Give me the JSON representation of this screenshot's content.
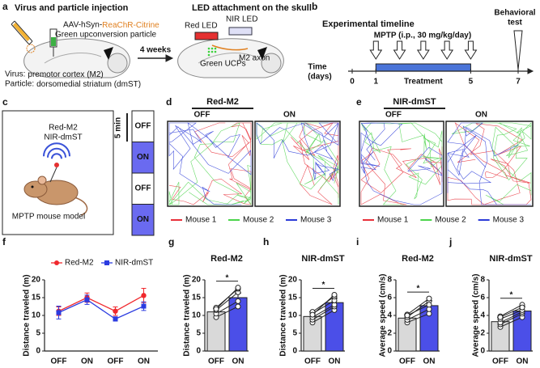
{
  "panel_a": {
    "letter": "a",
    "title": "Virus and particle injection",
    "construct_prefix": "AAV-hSyn-",
    "construct_gene": "ReaChR-Citrine",
    "particle": "Green upconversion particle",
    "interval": "4 weeks",
    "title_right": "LED attachment on the skull",
    "red_led": "Red LED",
    "nir_led": "NIR LED",
    "axon": "M2 axon",
    "ucps": "Green UCPs",
    "virus_key": "Virus:",
    "virus_site": "premotor cortex (M2)",
    "particle_key": "Particle:",
    "particle_site": "dorsomedial striatum (dmST)"
  },
  "panel_b": {
    "letter": "b",
    "title": "Experimental timeline",
    "drug": "MPTP (i.p., 30 mg/kg/day)",
    "test": [
      "Behavioral",
      "test"
    ],
    "axis_label": [
      "Time",
      "(days)"
    ],
    "xlim": [
      0,
      7
    ],
    "ticks": [
      0,
      1,
      5,
      7
    ],
    "injections": [
      1,
      2,
      3,
      4,
      5
    ],
    "treatment": "Treatment",
    "treatment_days": [
      1,
      5
    ],
    "test_day": 7
  },
  "panel_c": {
    "letter": "c",
    "groups": [
      "Red-M2",
      "NIR-dmST"
    ],
    "model": "MPTP mouse model",
    "duration": "5 min",
    "blocks": [
      "OFF",
      "ON",
      "OFF",
      "ON"
    ]
  },
  "panel_d": {
    "letter": "d",
    "title": "Red-M2",
    "conditions": [
      "OFF",
      "ON"
    ],
    "legend": [
      {
        "name": "Mouse 1",
        "color": "#e8303a"
      },
      {
        "name": "Mouse 2",
        "color": "#4cd44c"
      },
      {
        "name": "Mouse 3",
        "color": "#2b3bd8"
      }
    ]
  },
  "panel_e": {
    "letter": "e",
    "title": "NIR-dmST",
    "conditions": [
      "OFF",
      "ON"
    ],
    "legend": [
      {
        "name": "Mouse 1",
        "color": "#e8303a"
      },
      {
        "name": "Mouse 2",
        "color": "#4cd44c"
      },
      {
        "name": "Mouse 3",
        "color": "#2b3bd8"
      }
    ]
  },
  "chart_data": [
    {
      "panel": "f",
      "type": "line",
      "ylabel": "Distance traveled (m)",
      "categories": [
        "OFF",
        "ON",
        "OFF",
        "ON"
      ],
      "ylim": [
        0,
        20
      ],
      "yticks": [
        0,
        5,
        10,
        15,
        20
      ],
      "series": [
        {
          "name": "Red-M2",
          "color": "#f0282d",
          "marker": "circle",
          "values": [
            11.2,
            15,
            11.2,
            15.6
          ],
          "errors": [
            1.2,
            1.3,
            1.2,
            2
          ]
        },
        {
          "name": "NIR-dmST",
          "color": "#2b3be0",
          "marker": "square",
          "values": [
            10.8,
            14.4,
            9,
            12.6
          ],
          "errors": [
            1.8,
            1.3,
            0.6,
            1.2
          ]
        }
      ]
    },
    {
      "panel": "g",
      "type": "bar",
      "title": "Red-M2",
      "ylabel": "Distance traveled (m)",
      "categories": [
        "OFF",
        "ON"
      ],
      "colors": [
        "#d9d9d9",
        "#4b4fe8"
      ],
      "values": [
        11,
        15
      ],
      "errors": [
        1,
        1.3
      ],
      "ylim": [
        0,
        20
      ],
      "yticks": [
        0,
        5,
        10,
        15,
        20
      ],
      "subjects": [
        [
          9.5,
          12.5
        ],
        [
          10.5,
          14
        ],
        [
          11.5,
          16.5
        ],
        [
          12.2,
          17.5
        ],
        [
          11.8,
          17.8
        ]
      ],
      "significance": "*"
    },
    {
      "panel": "h",
      "type": "bar",
      "title": "NIR-dmST",
      "ylabel": "Distance traveled (m)",
      "categories": [
        "OFF",
        "ON"
      ],
      "colors": [
        "#d9d9d9",
        "#4b4fe8"
      ],
      "values": [
        9.7,
        13.6
      ],
      "errors": [
        1.3,
        1.2
      ],
      "ylim": [
        0,
        20
      ],
      "yticks": [
        0,
        5,
        10,
        15,
        20
      ],
      "subjects": [
        [
          8,
          11.5
        ],
        [
          8.8,
          12.5
        ],
        [
          9.5,
          13
        ],
        [
          10.5,
          14.2
        ],
        [
          11,
          15.3
        ],
        [
          10.2,
          15.8
        ]
      ],
      "significance": "*"
    },
    {
      "panel": "i",
      "type": "bar",
      "title": "Red-M2",
      "ylabel": "Average speed (cm/s)",
      "categories": [
        "OFF",
        "ON"
      ],
      "colors": [
        "#d9d9d9",
        "#4b4fe8"
      ],
      "values": [
        3.7,
        5.1
      ],
      "errors": [
        0.35,
        0.55
      ],
      "ylim": [
        0,
        8
      ],
      "yticks": [
        0,
        2,
        4,
        6,
        8
      ],
      "subjects": [
        [
          3.2,
          4.2
        ],
        [
          3.5,
          4.7
        ],
        [
          3.8,
          5.6
        ],
        [
          4.1,
          5.9
        ],
        [
          4,
          5.2
        ]
      ],
      "significance": "*"
    },
    {
      "panel": "j",
      "type": "bar",
      "title": "NIR-dmST",
      "ylabel": "Average speed (cm/s)",
      "categories": [
        "OFF",
        "ON"
      ],
      "colors": [
        "#d9d9d9",
        "#4b4fe8"
      ],
      "values": [
        3.3,
        4.5
      ],
      "errors": [
        0.5,
        0.5
      ],
      "ylim": [
        0,
        8
      ],
      "yticks": [
        0,
        2,
        4,
        6,
        8
      ],
      "subjects": [
        [
          2.7,
          3.8
        ],
        [
          3,
          4.2
        ],
        [
          3.2,
          4.4
        ],
        [
          3.6,
          4.6
        ],
        [
          3.9,
          5.2
        ],
        [
          3.8,
          4.9
        ]
      ],
      "significance": "*"
    }
  ]
}
